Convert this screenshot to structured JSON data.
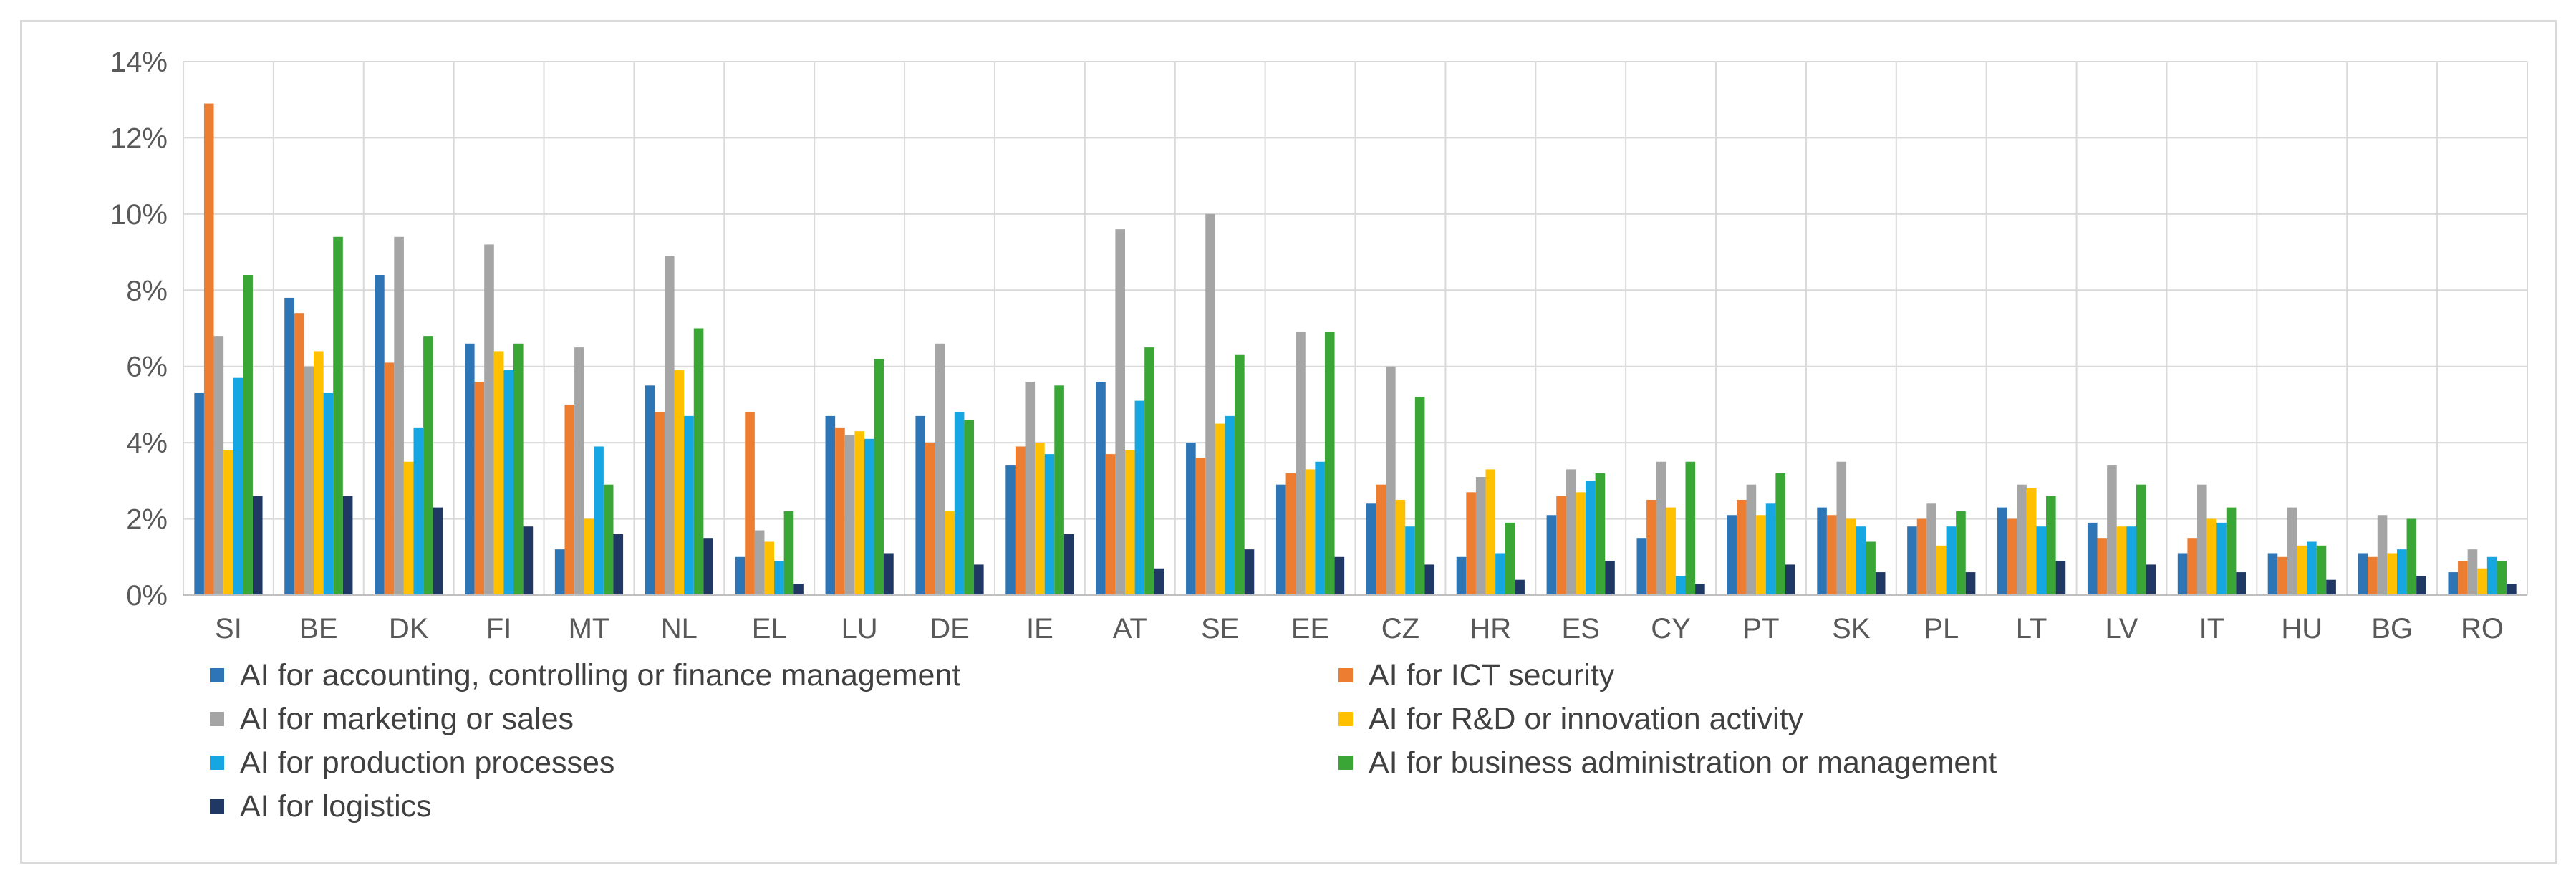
{
  "chart_data": {
    "type": "bar",
    "title": "",
    "xlabel": "",
    "ylabel": "",
    "ylim": [
      0,
      14
    ],
    "yticks": [
      "0%",
      "2%",
      "4%",
      "6%",
      "8%",
      "10%",
      "12%",
      "14%"
    ],
    "ytick_values": [
      0,
      2,
      4,
      6,
      8,
      10,
      12,
      14
    ],
    "categories": [
      "SI",
      "BE",
      "DK",
      "FI",
      "MT",
      "NL",
      "EL",
      "LU",
      "DE",
      "IE",
      "AT",
      "SE",
      "EE",
      "CZ",
      "HR",
      "ES",
      "CY",
      "PT",
      "SK",
      "PL",
      "LT",
      "LV",
      "IT",
      "HU",
      "BG",
      "RO"
    ],
    "series": [
      {
        "name": "AI for accounting, controlling or finance management",
        "color": "#2e75b6",
        "values": [
          5.3,
          7.8,
          8.4,
          6.6,
          1.2,
          5.5,
          1.0,
          4.7,
          4.7,
          3.4,
          5.6,
          4.0,
          2.9,
          2.4,
          1.0,
          2.1,
          1.5,
          2.1,
          2.3,
          1.8,
          2.3,
          1.9,
          1.1,
          1.1,
          1.1,
          0.6
        ]
      },
      {
        "name": "AI for ICT security",
        "color": "#ed7d31",
        "values": [
          12.9,
          7.4,
          6.1,
          5.6,
          5.0,
          4.8,
          4.8,
          4.4,
          4.0,
          3.9,
          3.7,
          3.6,
          3.2,
          2.9,
          2.7,
          2.6,
          2.5,
          2.5,
          2.1,
          2.0,
          2.0,
          1.5,
          1.5,
          1.0,
          1.0,
          0.9
        ]
      },
      {
        "name": "AI for marketing or sales",
        "color": "#a5a5a5",
        "values": [
          6.8,
          6.0,
          9.4,
          9.2,
          6.5,
          8.9,
          1.7,
          4.2,
          6.6,
          5.6,
          9.6,
          10.0,
          6.9,
          6.0,
          3.1,
          3.3,
          3.5,
          2.9,
          3.5,
          2.4,
          2.9,
          3.4,
          2.9,
          2.3,
          2.1,
          1.2
        ]
      },
      {
        "name": "AI for R&D or innovation activity",
        "color": "#ffc000",
        "values": [
          3.8,
          6.4,
          3.5,
          6.4,
          2.0,
          5.9,
          1.4,
          4.3,
          2.2,
          4.0,
          3.8,
          4.5,
          3.3,
          2.5,
          3.3,
          2.7,
          2.3,
          2.1,
          2.0,
          1.3,
          2.8,
          1.8,
          2.0,
          1.3,
          1.1,
          0.7
        ]
      },
      {
        "name": "AI for production processes",
        "color": "#16a6e1",
        "values": [
          5.7,
          5.3,
          4.4,
          5.9,
          3.9,
          4.7,
          0.9,
          4.1,
          4.8,
          3.7,
          5.1,
          4.7,
          3.5,
          1.8,
          1.1,
          3.0,
          0.5,
          2.4,
          1.8,
          1.8,
          1.8,
          1.8,
          1.9,
          1.4,
          1.2,
          1.0
        ]
      },
      {
        "name": "AI for business administration or management",
        "color": "#3aa635",
        "values": [
          8.4,
          9.4,
          6.8,
          6.6,
          2.9,
          7.0,
          2.2,
          6.2,
          4.6,
          5.5,
          6.5,
          6.3,
          6.9,
          5.2,
          1.9,
          3.2,
          3.5,
          3.2,
          1.4,
          2.2,
          2.6,
          2.9,
          2.3,
          1.3,
          2.0,
          0.9
        ]
      },
      {
        "name": "AI for logistics",
        "color": "#1f3864",
        "values": [
          2.6,
          2.6,
          2.3,
          1.8,
          1.6,
          1.5,
          0.3,
          1.1,
          0.8,
          1.6,
          0.7,
          1.2,
          1.0,
          0.8,
          0.4,
          0.9,
          0.3,
          0.8,
          0.6,
          0.6,
          0.9,
          0.8,
          0.6,
          0.4,
          0.5,
          0.3
        ]
      }
    ],
    "legend_position": "bottom",
    "grid": "both"
  }
}
